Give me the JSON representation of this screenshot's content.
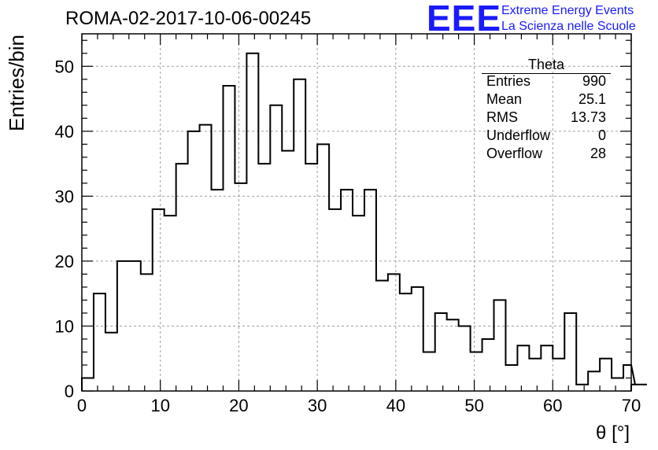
{
  "header": {
    "title": "ROMA-02-2017-10-06-00245",
    "logo_text": "EEE",
    "logo_line1": "Extreme Energy Events",
    "logo_line2": "La Scienza nelle Scuole"
  },
  "stats": {
    "name": "Theta",
    "rows": [
      {
        "label": "Entries",
        "value": "990"
      },
      {
        "label": "Mean",
        "value": "25.1"
      },
      {
        "label": "RMS",
        "value": "13.73"
      },
      {
        "label": "Underflow",
        "value": "0"
      },
      {
        "label": "Overflow",
        "value": "28"
      }
    ]
  },
  "colors": {
    "logo": "#1a1aff",
    "line": "#000000",
    "grid": "#a0a0a0"
  },
  "chart_data": {
    "type": "bar",
    "histogram": true,
    "xlabel": "θ [°]",
    "ylabel": "Entries/bin",
    "xlim": [
      0,
      70
    ],
    "ylim": [
      0,
      55
    ],
    "grid": true,
    "bin_width": 1.5,
    "x_ticks": [
      "0",
      "10",
      "20",
      "30",
      "40",
      "50",
      "60",
      "70"
    ],
    "y_ticks": [
      "0",
      "10",
      "20",
      "30",
      "40",
      "50"
    ],
    "bin_edges_start": 0,
    "values": [
      2,
      15,
      9,
      20,
      20,
      18,
      28,
      27,
      35,
      40,
      41,
      31,
      47,
      32,
      52,
      35,
      44,
      37,
      48,
      35,
      38,
      28,
      31,
      27,
      31,
      17,
      18,
      15,
      16,
      6,
      12,
      11,
      10,
      6,
      8,
      14,
      4,
      7,
      5,
      7,
      5,
      12,
      1,
      3,
      5,
      2,
      4,
      1,
      1
    ]
  }
}
